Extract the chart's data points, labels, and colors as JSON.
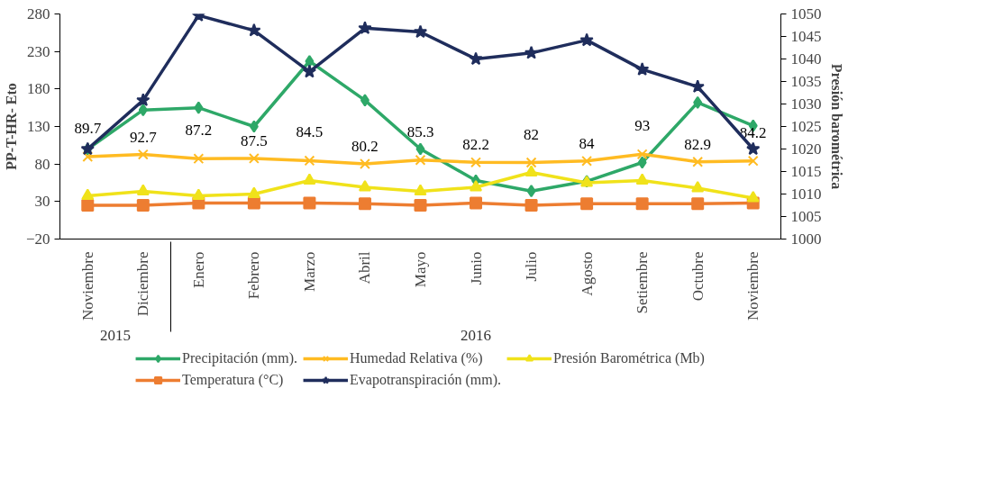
{
  "chart_data": {
    "type": "line",
    "categories": [
      "Noviembre",
      "Diciembre",
      "Enero",
      "Febrero",
      "Marzo",
      "Abril",
      "Mayo",
      "Junio",
      "Julio",
      "Agosto",
      "Setiembre",
      "Octubre",
      "Noviembre"
    ],
    "ylabel": "PP-T-HR- Eto",
    "y2label": "Presión barométrica",
    "ylim": [
      -20,
      280
    ],
    "yticks": [
      -20,
      30,
      80,
      130,
      180,
      230,
      280
    ],
    "y2lim": [
      1000,
      1050
    ],
    "y2ticks": [
      1000,
      1005,
      1010,
      1015,
      1020,
      1025,
      1030,
      1035,
      1040,
      1045,
      1050
    ],
    "annotations": [
      "2015",
      "2016"
    ],
    "legend": "bottom",
    "grid": false,
    "line_style": "solid",
    "series": [
      {
        "name": "Precipitación (mm).",
        "color": "#2ea868",
        "marker": "diamond",
        "values": [
          100,
          152,
          155,
          130,
          217,
          165,
          100,
          58,
          44,
          57,
          82,
          162,
          131
        ]
      },
      {
        "name": "Temperatura (°C)",
        "color": "#ed7d31",
        "marker": "square",
        "values": [
          25,
          25,
          28,
          28,
          28,
          27,
          25,
          28,
          25,
          27,
          27,
          27,
          28
        ]
      },
      {
        "name": "Humedad Relativa (%)",
        "color": "#ffbb22",
        "marker": "cross",
        "values": [
          89.7,
          92.7,
          87.2,
          87.5,
          84.5,
          80.2,
          85.3,
          82.2,
          82,
          84,
          93,
          82.9,
          84.2
        ],
        "value_labels": [
          "89.7",
          "92.7",
          "87.2",
          "87.5",
          "84.5",
          "80.2",
          "85.3",
          "82.2",
          "82",
          "84",
          "93",
          "82.9",
          "84.2"
        ]
      },
      {
        "name": "Evapotranspiración (mm).",
        "color": "#1f2d5c",
        "marker": "star",
        "values": [
          100,
          165,
          278,
          258,
          203,
          261,
          256,
          220,
          228,
          245,
          206,
          183,
          100
        ]
      },
      {
        "name": "Presión Barométrica (Mb)",
        "color": "#f0e21a",
        "marker": "triangle",
        "axis": "y2",
        "values": [
          1009.6,
          1010.6,
          1009.6,
          1010,
          1013,
          1011.5,
          1010.6,
          1011.5,
          1014.8,
          1012.5,
          1013,
          1011.3,
          1009.1
        ]
      }
    ]
  }
}
